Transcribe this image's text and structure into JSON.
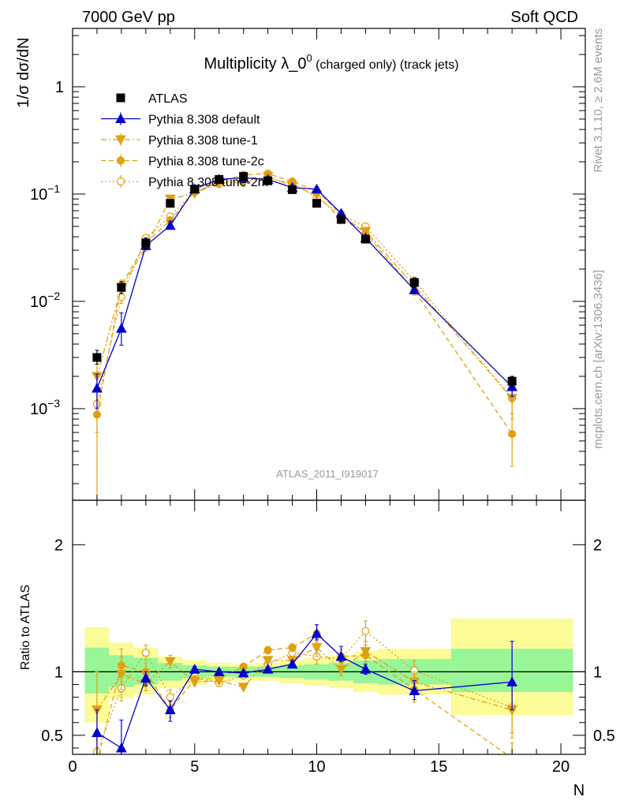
{
  "header": {
    "left": "7000 GeV pp",
    "right": "Soft QCD"
  },
  "side_text": {
    "top": "Rivet 3.1.10, ≥ 2.6M events",
    "bottom": "mcplots.cern.ch [arXiv:1306.3436]"
  },
  "watermark": "ATLAS_2011_I919017",
  "colors": {
    "atlas": "#000000",
    "default": "#0000cc",
    "tune": "#e0a010",
    "band_green": "#98f598",
    "band_yellow": "#fbfb98"
  },
  "chart_data": [
    {
      "type": "scatter",
      "title": "Multiplicity λ_0",
      "title_sup": "0",
      "title_suffix": "(charged only) (track jets)",
      "ylabel": "1/σ dσ/dN",
      "ylog": true,
      "ylim": [
        0.00014,
        3.5
      ],
      "xlim": [
        0,
        21
      ],
      "y_ticks": [
        {
          "value": 0.001,
          "base": "10",
          "exp": "−3"
        },
        {
          "value": 0.01,
          "base": "10",
          "exp": "−2"
        },
        {
          "value": 0.1,
          "base": "10",
          "exp": "−1"
        },
        {
          "value": 1,
          "base": "1",
          "exp": ""
        }
      ],
      "x": [
        1,
        2,
        3,
        4,
        5,
        6,
        7,
        8,
        9,
        10,
        11,
        12,
        14,
        18
      ],
      "series": [
        {
          "name": "ATLAS",
          "marker": "square-filled",
          "values": [
            0.003,
            0.0135,
            0.035,
            0.082,
            0.111,
            0.137,
            0.146,
            0.133,
            0.11,
            0.082,
            0.058,
            0.038,
            0.015,
            0.0018
          ],
          "err_lo": [
            0.0026,
            0.0118,
            0.031,
            0.077,
            0.108,
            0.134,
            0.143,
            0.13,
            0.107,
            0.079,
            0.055,
            0.035,
            0.0135,
            0.0016
          ],
          "err_hi": [
            0.0035,
            0.0153,
            0.039,
            0.087,
            0.114,
            0.14,
            0.149,
            0.136,
            0.113,
            0.085,
            0.061,
            0.041,
            0.0165,
            0.002
          ]
        },
        {
          "name": "Pythia 8.308 default",
          "marker": "triangle-filled",
          "line": "solid",
          "values": [
            0.00155,
            0.0056,
            0.033,
            0.051,
            0.112,
            0.137,
            0.142,
            0.137,
            0.115,
            0.111,
            0.066,
            0.039,
            0.0128,
            0.0016
          ],
          "err_lo": [
            0.001,
            0.0039,
            0.031,
            0.047,
            0.109,
            0.134,
            0.139,
            0.134,
            0.112,
            0.105,
            0.063,
            0.037,
            0.0118,
            0.0013
          ],
          "err_hi": [
            0.0021,
            0.0078,
            0.035,
            0.056,
            0.115,
            0.14,
            0.145,
            0.14,
            0.118,
            0.117,
            0.07,
            0.041,
            0.014,
            0.002
          ]
        },
        {
          "name": "Pythia 8.308 tune-1",
          "marker": "triangle-down-filled",
          "line": "dashdot",
          "values": [
            0.002,
            0.0134,
            0.032,
            0.09,
            0.102,
            0.127,
            0.128,
            0.145,
            0.12,
            0.098,
            0.058,
            0.045,
            0.014,
            0.00125
          ],
          "err_lo": [
            0.0012,
            0.0118,
            0.03,
            0.085,
            0.099,
            0.124,
            0.125,
            0.142,
            0.117,
            0.094,
            0.055,
            0.042,
            0.0128,
            0.0008
          ],
          "err_hi": [
            0.0028,
            0.015,
            0.034,
            0.095,
            0.105,
            0.13,
            0.131,
            0.148,
            0.123,
            0.102,
            0.061,
            0.048,
            0.0152,
            0.0017
          ]
        },
        {
          "name": "Pythia 8.308 tune-2c",
          "marker": "circle-filled",
          "line": "dashed",
          "values": [
            0.00088,
            0.0141,
            0.035,
            0.057,
            0.104,
            0.13,
            0.151,
            0.155,
            0.131,
            0.107,
            0.065,
            0.043,
            0.0126,
            0.00058
          ],
          "err_lo": [
            0.0001,
            0.0124,
            0.033,
            0.053,
            0.101,
            0.127,
            0.148,
            0.152,
            0.128,
            0.103,
            0.062,
            0.04,
            0.0114,
            0.00029
          ],
          "err_hi": [
            0.0017,
            0.0158,
            0.037,
            0.061,
            0.107,
            0.133,
            0.154,
            0.158,
            0.134,
            0.111,
            0.068,
            0.046,
            0.0138,
            0.0009
          ]
        },
        {
          "name": "Pythia 8.308 tune-2m",
          "marker": "circle-open",
          "line": "dotted",
          "values": [
            0.0011,
            0.011,
            0.039,
            0.062,
            0.106,
            0.124,
            0.141,
            0.14,
            0.127,
            0.093,
            0.064,
            0.05,
            0.0155,
            0.00125
          ],
          "err_lo": [
            0.0006,
            0.0096,
            0.037,
            0.058,
            0.103,
            0.121,
            0.138,
            0.137,
            0.124,
            0.09,
            0.061,
            0.047,
            0.0141,
            0.0009
          ],
          "err_hi": [
            0.0016,
            0.0124,
            0.041,
            0.066,
            0.109,
            0.127,
            0.144,
            0.143,
            0.13,
            0.096,
            0.067,
            0.053,
            0.0169,
            0.0016
          ]
        }
      ]
    },
    {
      "type": "scatter",
      "title": "",
      "ylabel": "Ratio to ATLAS",
      "xlabel": "N",
      "ylim": [
        0.35,
        2.35
      ],
      "xlim": [
        0,
        21
      ],
      "x_ticks": [
        0,
        5,
        10,
        15,
        20
      ],
      "y_ticks": [
        0.5,
        1,
        2
      ],
      "reference_line": 1,
      "bands": [
        {
          "x_lo": 0.5,
          "x_hi": 1.5,
          "green": [
            0.83,
            1.19
          ],
          "yellow": [
            0.6,
            1.35
          ]
        },
        {
          "x_lo": 1.5,
          "x_hi": 2.5,
          "green": [
            0.88,
            1.13
          ],
          "yellow": [
            0.79,
            1.23
          ]
        },
        {
          "x_lo": 2.5,
          "x_hi": 3.5,
          "green": [
            0.9,
            1.11
          ],
          "yellow": [
            0.82,
            1.19
          ]
        },
        {
          "x_lo": 3.5,
          "x_hi": 4.5,
          "green": [
            0.93,
            1.07
          ],
          "yellow": [
            0.87,
            1.12
          ]
        },
        {
          "x_lo": 4.5,
          "x_hi": 5.5,
          "green": [
            0.95,
            1.05
          ],
          "yellow": [
            0.9,
            1.09
          ]
        },
        {
          "x_lo": 5.5,
          "x_hi": 6.5,
          "green": [
            0.96,
            1.04
          ],
          "yellow": [
            0.92,
            1.07
          ]
        },
        {
          "x_lo": 6.5,
          "x_hi": 7.5,
          "green": [
            0.96,
            1.04
          ],
          "yellow": [
            0.93,
            1.06
          ]
        },
        {
          "x_lo": 7.5,
          "x_hi": 8.5,
          "green": [
            0.96,
            1.04
          ],
          "yellow": [
            0.93,
            1.07
          ]
        },
        {
          "x_lo": 8.5,
          "x_hi": 9.5,
          "green": [
            0.95,
            1.05
          ],
          "yellow": [
            0.91,
            1.09
          ]
        },
        {
          "x_lo": 9.5,
          "x_hi": 10.5,
          "green": [
            0.94,
            1.06
          ],
          "yellow": [
            0.89,
            1.11
          ]
        },
        {
          "x_lo": 10.5,
          "x_hi": 11.5,
          "green": [
            0.93,
            1.07
          ],
          "yellow": [
            0.87,
            1.13
          ]
        },
        {
          "x_lo": 11.5,
          "x_hi": 12.5,
          "green": [
            0.91,
            1.09
          ],
          "yellow": [
            0.84,
            1.16
          ]
        },
        {
          "x_lo": 12.5,
          "x_hi": 15.5,
          "green": [
            0.9,
            1.1
          ],
          "yellow": [
            0.82,
            1.18
          ]
        },
        {
          "x_lo": 15.5,
          "x_hi": 20.5,
          "green": [
            0.84,
            1.18
          ],
          "yellow": [
            0.66,
            1.42
          ]
        }
      ],
      "x": [
        1,
        2,
        3,
        4,
        5,
        6,
        7,
        8,
        9,
        10,
        11,
        12,
        14,
        18
      ],
      "series": [
        {
          "name": "Pythia 8.308 default",
          "values": [
            0.52,
            0.4,
            0.95,
            0.7,
            1.02,
            1.0,
            0.99,
            1.02,
            1.06,
            1.3,
            1.12,
            1.02,
            0.85,
            0.92
          ],
          "err_lo": [
            0.34,
            0.28,
            0.89,
            0.61,
            1.0,
            0.98,
            0.97,
            1.0,
            1.03,
            1.25,
            1.08,
            0.98,
            0.78,
            0.7
          ],
          "err_hi": [
            0.7,
            0.62,
            1.0,
            0.77,
            1.04,
            1.02,
            1.01,
            1.04,
            1.09,
            1.37,
            1.2,
            1.06,
            0.93,
            1.24
          ]
        },
        {
          "name": "Pythia 8.308 tune-1",
          "values": [
            0.7,
            0.98,
            0.91,
            1.08,
            0.92,
            0.93,
            0.88,
            1.09,
            1.09,
            1.19,
            1.02,
            1.16,
            0.92,
            0.7
          ],
          "err_lo": [
            0.4,
            0.86,
            0.85,
            1.03,
            0.89,
            0.91,
            0.86,
            1.06,
            1.06,
            1.12,
            0.97,
            1.08,
            0.84,
            0.48
          ],
          "err_hi": [
            1.0,
            1.12,
            0.97,
            1.13,
            0.95,
            0.95,
            0.9,
            1.12,
            1.12,
            1.26,
            1.07,
            1.24,
            1.0,
            0.92
          ]
        },
        {
          "name": "Pythia 8.308 tune-2c",
          "values": [
            0.29,
            1.05,
            1.0,
            0.7,
            0.94,
            0.95,
            1.04,
            1.17,
            1.19,
            1.3,
            1.12,
            1.13,
            0.86,
            0.32
          ],
          "err_lo": [
            0.05,
            0.92,
            0.94,
            0.64,
            0.91,
            0.93,
            1.02,
            1.14,
            1.16,
            1.23,
            1.07,
            1.05,
            0.76,
            0.2
          ],
          "err_hi": [
            0.53,
            1.18,
            1.07,
            0.76,
            0.97,
            0.97,
            1.06,
            1.2,
            1.22,
            1.37,
            1.17,
            1.21,
            0.96,
            0.44
          ]
        },
        {
          "name": "Pythia 8.308 tune-2m",
          "values": [
            0.37,
            0.87,
            1.15,
            0.8,
            0.96,
            0.91,
            0.97,
            1.06,
            1.15,
            1.12,
            1.1,
            1.32,
            1.01,
            0.72
          ],
          "err_lo": [
            0.2,
            0.77,
            1.09,
            0.74,
            0.93,
            0.89,
            0.95,
            1.03,
            1.12,
            1.06,
            1.05,
            1.24,
            0.93,
            0.52
          ],
          "err_hi": [
            0.54,
            0.97,
            1.21,
            0.86,
            0.99,
            0.93,
            0.99,
            1.09,
            1.18,
            1.18,
            1.15,
            1.4,
            1.09,
            0.92
          ]
        }
      ]
    }
  ]
}
